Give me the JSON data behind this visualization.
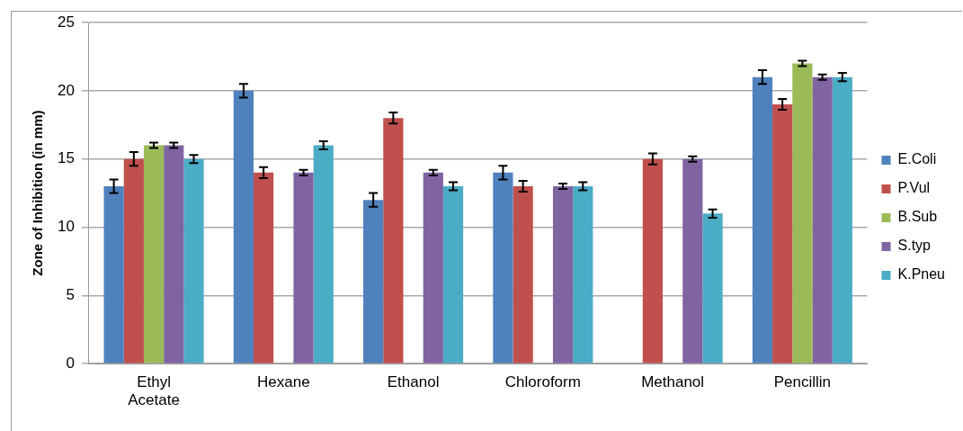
{
  "chart_data": {
    "type": "bar",
    "ylabel": "Zone of Inhibition (in mm)",
    "categories": [
      "Ethyl Acetate",
      "Hexane",
      "Ethanol",
      "Chloroform",
      "Methanol",
      "Pencillin"
    ],
    "series": [
      {
        "name": "E.Coli",
        "color": "#4f81bd",
        "values": [
          13,
          20,
          12,
          14,
          null,
          21
        ],
        "errors": [
          0.5,
          0.5,
          0.5,
          0.5,
          null,
          0.5
        ]
      },
      {
        "name": "P.Vul",
        "color": "#c0504d",
        "values": [
          15,
          14,
          18,
          13,
          15,
          19
        ],
        "errors": [
          0.5,
          0.4,
          0.4,
          0.4,
          0.4,
          0.4
        ]
      },
      {
        "name": "B.Sub",
        "color": "#9bbb59",
        "values": [
          16,
          null,
          null,
          null,
          null,
          22
        ],
        "errors": [
          0.2,
          null,
          null,
          null,
          null,
          0.2
        ]
      },
      {
        "name": "S.typ",
        "color": "#8064a2",
        "values": [
          16,
          14,
          14,
          13,
          15,
          21
        ],
        "errors": [
          0.2,
          0.2,
          0.2,
          0.2,
          0.2,
          0.2
        ]
      },
      {
        "name": "K.Pneu",
        "color": "#4bacc6",
        "values": [
          15,
          16,
          13,
          13,
          11,
          21
        ],
        "errors": [
          0.3,
          0.3,
          0.3,
          0.3,
          0.3,
          0.3
        ]
      }
    ],
    "ylim": [
      0,
      25
    ],
    "yticks": [
      0,
      5,
      10,
      15,
      20,
      25
    ],
    "grid": "y",
    "legend": "right"
  }
}
